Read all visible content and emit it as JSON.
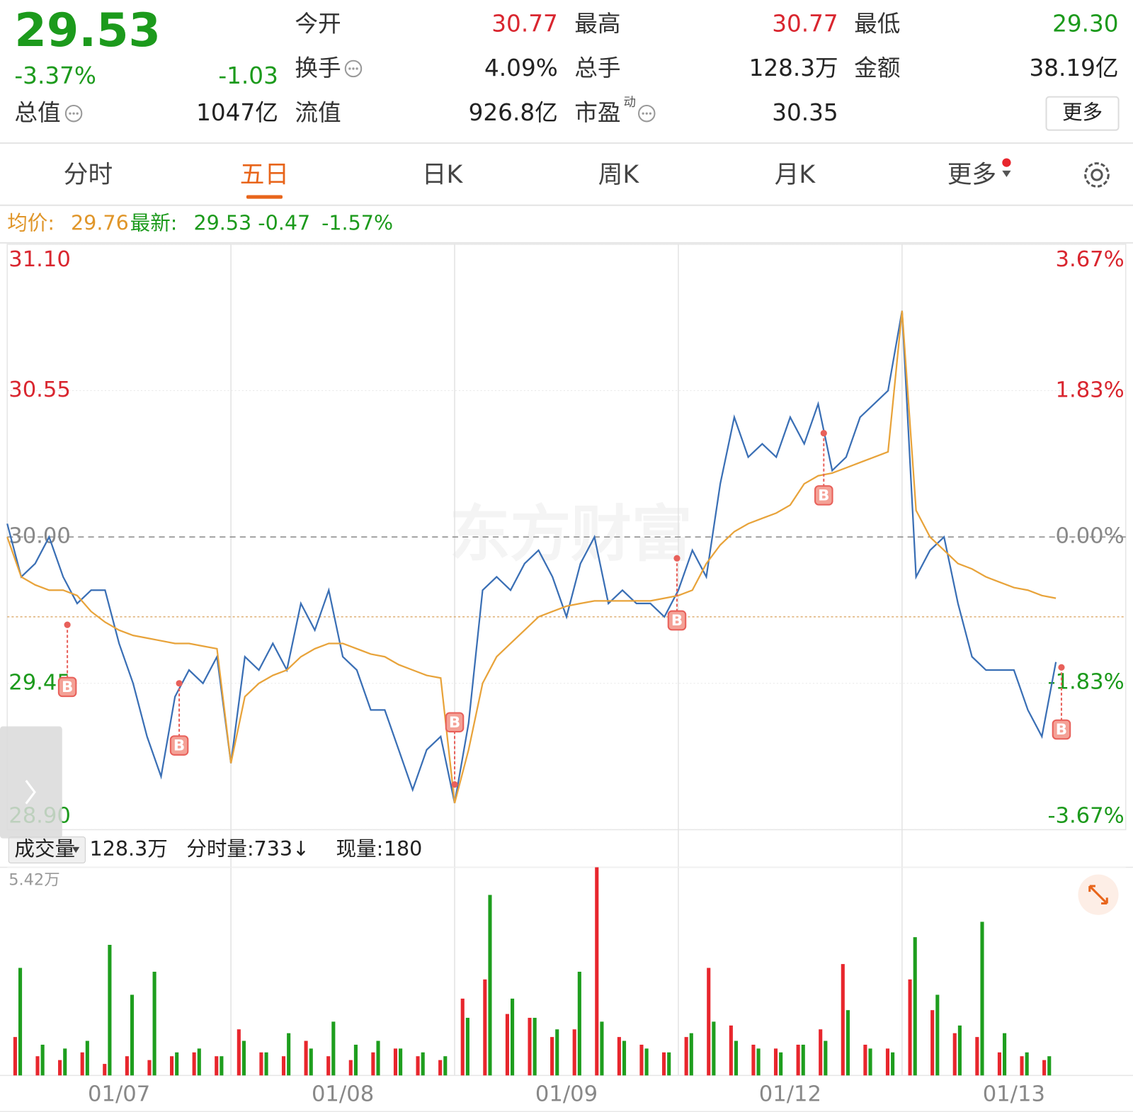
{
  "header": {
    "price": "29.53",
    "change_pct": "-3.37%",
    "change": "-1.03",
    "total_label": "总值",
    "total_value": "1047亿",
    "stats": [
      {
        "label": "今开",
        "value": "30.77"
      },
      {
        "label": "最高",
        "value": "30.77"
      },
      {
        "label": "最低",
        "value": "29.30"
      },
      {
        "label": "换手",
        "value": "4.09%"
      },
      {
        "label": "总手",
        "value": "128.3万"
      },
      {
        "label": "金额",
        "value": "38.19亿"
      },
      {
        "label": "流值",
        "value": "926.8亿"
      },
      {
        "label": "市盈",
        "superscript": "动",
        "value": "30.35"
      }
    ],
    "more_button": "更多"
  },
  "tabs": [
    "分时",
    "五日",
    "日K",
    "周K",
    "月K",
    "更多"
  ],
  "active_tab": 1,
  "info": {
    "avg_label": "均价:",
    "avg_value": "29.76",
    "last_label": "最新:",
    "last_value": "29.53",
    "change": "-0.47",
    "change_pct": "-1.57%"
  },
  "volume_header": {
    "selector": "成交量",
    "total": "128.3万",
    "tick_volume": "分时量:733↓",
    "now_label": "现量:",
    "now_value": "180"
  },
  "chart_data": [
    {
      "type": "line",
      "watermark": "东方财富",
      "xlim": [
        0,
        80
      ],
      "xgrid": [
        16,
        32,
        48,
        64
      ],
      "ylim": [
        28.9,
        31.1
      ],
      "yticks": [
        {
          "value": 31.1,
          "label": "31.10"
        },
        30.55,
        {
          "value": 30.0,
          "label": "30.00"
        },
        29.45,
        {
          "value": 28.9,
          "label": "28.90"
        }
      ],
      "y2lim": [
        -3.67,
        3.67
      ],
      "y2ticks": [
        {
          "value": 3.67,
          "label": "3.67%"
        },
        {
          "value": 1.83,
          "label": "1.83%"
        },
        {
          "value": 0,
          "label": "0.00%"
        },
        {
          "value": -1.83,
          "label": "-1.83%"
        },
        {
          "value": -3.67,
          "label": "-3.67%"
        }
      ],
      "prev_close": 30.0,
      "reference_price": 29.7,
      "series": [
        {
          "color": "#3a6fb5",
          "values": [
            30.05,
            29.85,
            29.9,
            30.0,
            29.85,
            29.75,
            29.8,
            29.8,
            29.6,
            29.45,
            29.25,
            29.1,
            29.4,
            29.5,
            29.45,
            29.55,
            29.15,
            29.55,
            29.5,
            29.6,
            29.5,
            29.75,
            29.65,
            29.8,
            29.55,
            29.5,
            29.35,
            29.35,
            29.2,
            29.05,
            29.2,
            29.25,
            29.0,
            29.3,
            29.8,
            29.85,
            29.8,
            29.9,
            29.95,
            29.85,
            29.7,
            29.9,
            30.0,
            29.75,
            29.8,
            29.75,
            29.75,
            29.7,
            29.8,
            29.95,
            29.85,
            30.2,
            30.45,
            30.3,
            30.35,
            30.3,
            30.45,
            30.35,
            30.5,
            30.25,
            30.3,
            30.45,
            30.5,
            30.55,
            30.85,
            29.85,
            29.95,
            30.0,
            29.75,
            29.55,
            29.5,
            29.5,
            29.5,
            29.35,
            29.25,
            29.53
          ]
        },
        {
          "color": "#e8a33a",
          "values": [
            30.0,
            29.85,
            29.82,
            29.8,
            29.8,
            29.78,
            29.72,
            29.68,
            29.65,
            29.63,
            29.62,
            29.61,
            29.6,
            29.6,
            29.59,
            29.58,
            29.15,
            29.4,
            29.45,
            29.48,
            29.5,
            29.55,
            29.58,
            29.6,
            29.6,
            29.58,
            29.56,
            29.55,
            29.52,
            29.5,
            29.48,
            29.47,
            29.0,
            29.2,
            29.45,
            29.55,
            29.6,
            29.65,
            29.7,
            29.72,
            29.74,
            29.75,
            29.76,
            29.76,
            29.76,
            29.76,
            29.76,
            29.77,
            29.78,
            29.8,
            29.9,
            29.97,
            30.02,
            30.05,
            30.07,
            30.09,
            30.12,
            30.2,
            30.23,
            30.24,
            30.26,
            30.28,
            30.3,
            30.32,
            30.85,
            30.1,
            30.0,
            29.95,
            29.9,
            29.88,
            29.85,
            29.83,
            29.81,
            29.8,
            29.78,
            29.77
          ]
        }
      ],
      "markers": [
        {
          "x": 4.3,
          "y": 29.67,
          "label": "B"
        },
        {
          "x": 12.3,
          "y": 29.45,
          "label": "B"
        },
        {
          "x": 32.0,
          "y": 29.07,
          "label": "B"
        },
        {
          "x": 47.9,
          "y": 29.92,
          "label": "B"
        },
        {
          "x": 58.4,
          "y": 30.39,
          "label": "B"
        },
        {
          "x": 75.4,
          "y": 29.51,
          "label": "B"
        }
      ]
    },
    {
      "type": "bar",
      "xlim": [
        0,
        50
      ],
      "xticks": [
        {
          "value": 5,
          "label": "01/07"
        },
        {
          "value": 15,
          "label": "01/08"
        },
        {
          "value": 25,
          "label": "01/09"
        },
        {
          "value": 35,
          "label": "01/12"
        },
        {
          "value": 45,
          "label": "01/13"
        }
      ],
      "ylim": [
        0,
        5.42
      ],
      "yticks": [
        {
          "value": 5.42,
          "label": "5.42万"
        }
      ],
      "series": [
        {
          "color": "#e8262d",
          "values": [
            1.0,
            0.5,
            0.4,
            0.6,
            0.3,
            0.5,
            0.4,
            0.5,
            0.6,
            0.5,
            1.2,
            0.6,
            0.5,
            0.9,
            0.5,
            0.4,
            0.6,
            0.7,
            0.5,
            0.4,
            2.0,
            2.5,
            1.6,
            1.5,
            1.0,
            1.2,
            5.42,
            1.0,
            0.8,
            0.6,
            1.0,
            2.8,
            1.3,
            0.8,
            0.7,
            0.8,
            1.2,
            2.9,
            0.8,
            0.7,
            2.5,
            1.7,
            1.1,
            1.0,
            0.6,
            0.5,
            0.4
          ]
        },
        {
          "color": "#1e9e1e",
          "values": [
            2.8,
            0.8,
            0.7,
            0.9,
            3.4,
            2.1,
            2.7,
            0.6,
            0.7,
            0.5,
            0.9,
            0.6,
            1.1,
            0.7,
            1.4,
            0.8,
            0.9,
            0.7,
            0.6,
            0.5,
            1.5,
            4.7,
            2.0,
            1.5,
            1.2,
            2.7,
            1.4,
            0.9,
            0.7,
            0.6,
            1.1,
            1.4,
            0.9,
            0.7,
            0.6,
            0.8,
            0.9,
            1.7,
            0.7,
            0.6,
            3.6,
            2.1,
            1.3,
            4.0,
            1.1,
            0.6,
            0.5
          ]
        }
      ]
    }
  ]
}
